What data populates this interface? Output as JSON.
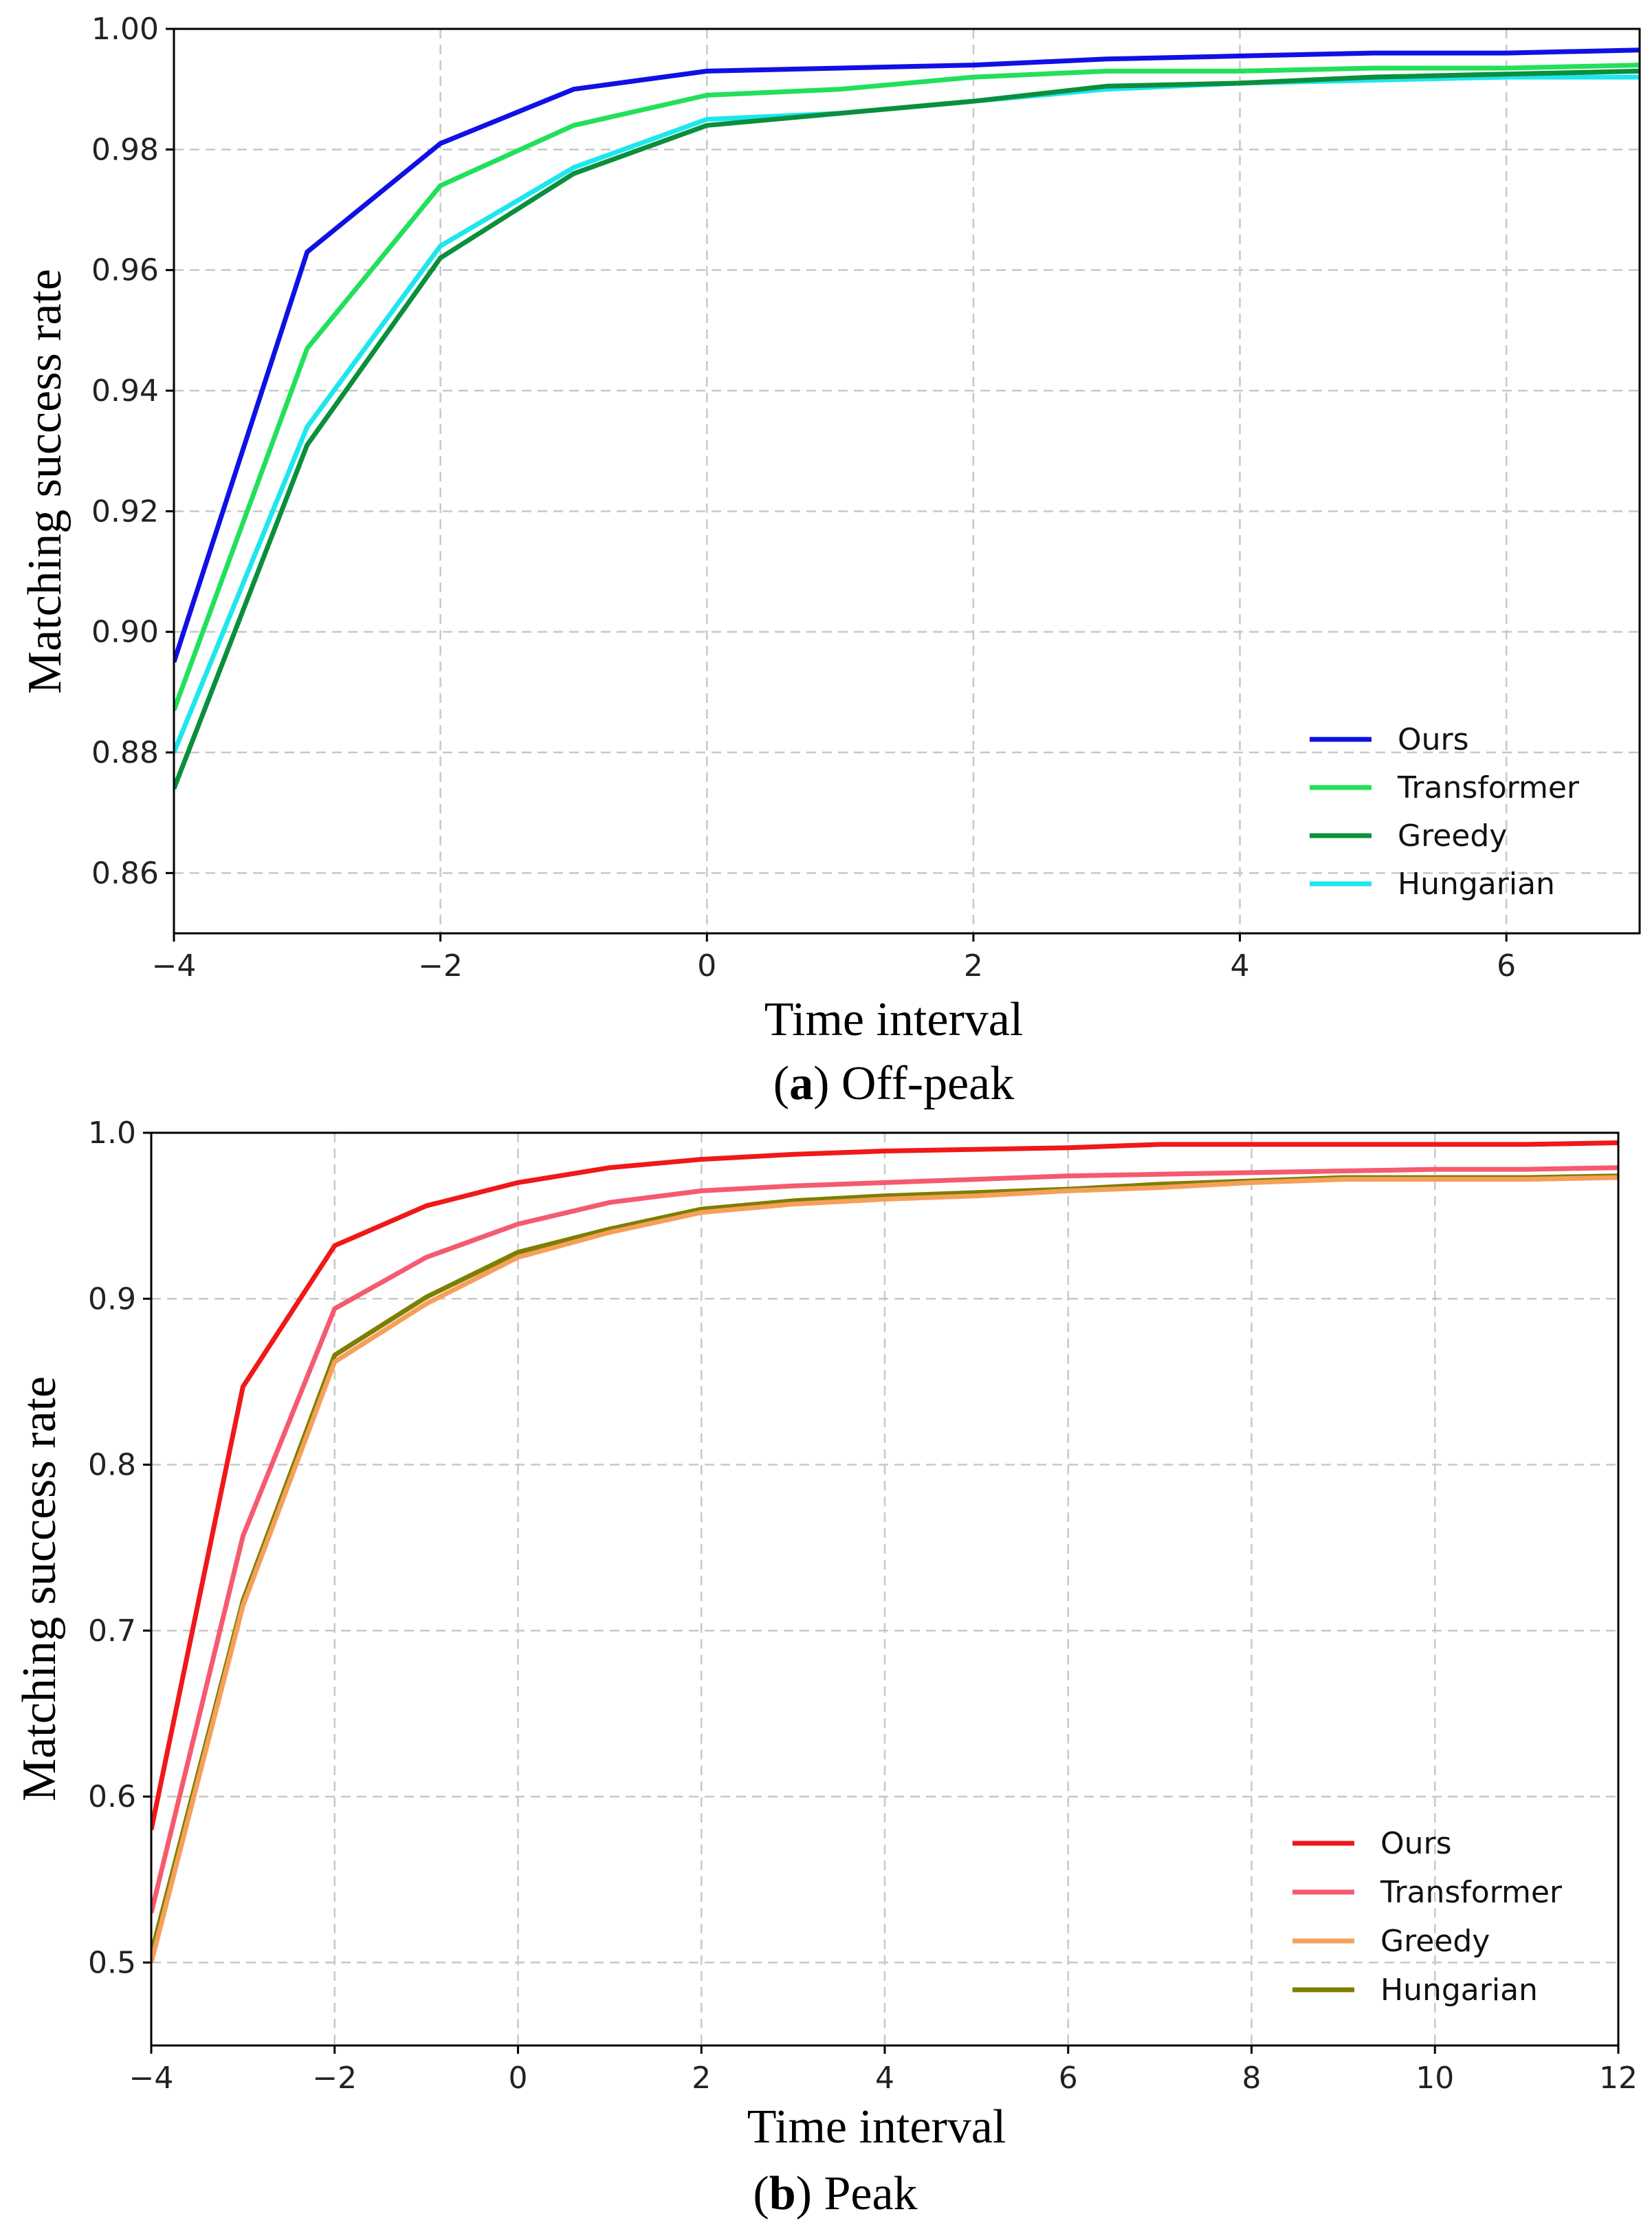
{
  "chart_data": [
    {
      "type": "line",
      "panel_letter": "a",
      "caption": "Off-peak",
      "xlabel": "Time interval",
      "ylabel": "Matching success rate",
      "xlim": [
        -4,
        7
      ],
      "ylim": [
        0.85,
        1.0
      ],
      "x_ticks": [
        -4,
        -2,
        0,
        2,
        4,
        6
      ],
      "x_tick_labels": [
        "−4",
        "−2",
        "0",
        "2",
        "4",
        "6"
      ],
      "y_ticks": [
        0.86,
        0.88,
        0.9,
        0.92,
        0.94,
        0.96,
        0.98,
        1.0
      ],
      "y_tick_labels": [
        "0.86",
        "0.88",
        "0.90",
        "0.92",
        "0.94",
        "0.96",
        "0.98",
        "1.00"
      ],
      "grid": true,
      "legend_position": "bottom-right",
      "x": [
        -4,
        -3,
        -2,
        -1,
        0,
        1,
        2,
        3,
        4,
        5,
        6,
        7
      ],
      "series": [
        {
          "name": "Ours",
          "color": "#1010e6",
          "values": [
            0.895,
            0.963,
            0.981,
            0.99,
            0.993,
            0.9935,
            0.994,
            0.995,
            0.9955,
            0.996,
            0.996,
            0.9965
          ]
        },
        {
          "name": "Transformer",
          "color": "#22e05a",
          "values": [
            0.887,
            0.947,
            0.974,
            0.984,
            0.989,
            0.99,
            0.992,
            0.993,
            0.993,
            0.9935,
            0.9935,
            0.994
          ]
        },
        {
          "name": "Greedy",
          "color": "#0a8f3c",
          "values": [
            0.874,
            0.931,
            0.962,
            0.976,
            0.984,
            0.986,
            0.988,
            0.9905,
            0.991,
            0.992,
            0.9925,
            0.993
          ]
        },
        {
          "name": "Hungarian",
          "color": "#1ee6ee",
          "values": [
            0.88,
            0.934,
            0.964,
            0.977,
            0.985,
            0.986,
            0.988,
            0.99,
            0.991,
            0.9915,
            0.992,
            0.992
          ]
        }
      ]
    },
    {
      "type": "line",
      "panel_letter": "b",
      "caption": "Peak",
      "xlabel": "Time interval",
      "ylabel": "Matching success rate",
      "xlim": [
        -4,
        12
      ],
      "ylim": [
        0.45,
        1.0
      ],
      "x_ticks": [
        -4,
        -2,
        0,
        2,
        4,
        6,
        8,
        10,
        12
      ],
      "x_tick_labels": [
        "−4",
        "−2",
        "0",
        "2",
        "4",
        "6",
        "8",
        "10",
        "12"
      ],
      "y_ticks": [
        0.5,
        0.6,
        0.7,
        0.8,
        0.9,
        1.0
      ],
      "y_tick_labels": [
        "0.5",
        "0.6",
        "0.7",
        "0.8",
        "0.9",
        "1.0"
      ],
      "grid": true,
      "legend_position": "bottom-right",
      "x": [
        -4,
        -3,
        -2,
        -1,
        0,
        1,
        2,
        3,
        4,
        5,
        6,
        7,
        8,
        9,
        10,
        11,
        12
      ],
      "series": [
        {
          "name": "Ours",
          "color": "#f01818",
          "values": [
            0.58,
            0.847,
            0.932,
            0.956,
            0.97,
            0.979,
            0.984,
            0.987,
            0.989,
            0.99,
            0.991,
            0.993,
            0.993,
            0.993,
            0.993,
            0.993,
            0.994
          ]
        },
        {
          "name": "Transformer",
          "color": "#f55a6e",
          "values": [
            0.53,
            0.757,
            0.894,
            0.925,
            0.945,
            0.958,
            0.965,
            0.968,
            0.97,
            0.972,
            0.974,
            0.975,
            0.976,
            0.977,
            0.978,
            0.978,
            0.979
          ]
        },
        {
          "name": "Greedy",
          "color": "#f5a05a",
          "values": [
            0.5,
            0.715,
            0.862,
            0.897,
            0.925,
            0.94,
            0.952,
            0.957,
            0.96,
            0.962,
            0.965,
            0.967,
            0.97,
            0.972,
            0.972,
            0.972,
            0.973
          ]
        },
        {
          "name": "Hungarian",
          "color": "#7e7e00",
          "values": [
            0.505,
            0.718,
            0.866,
            0.901,
            0.928,
            0.942,
            0.954,
            0.959,
            0.962,
            0.964,
            0.966,
            0.969,
            0.971,
            0.973,
            0.973,
            0.973,
            0.974
          ]
        }
      ]
    }
  ]
}
